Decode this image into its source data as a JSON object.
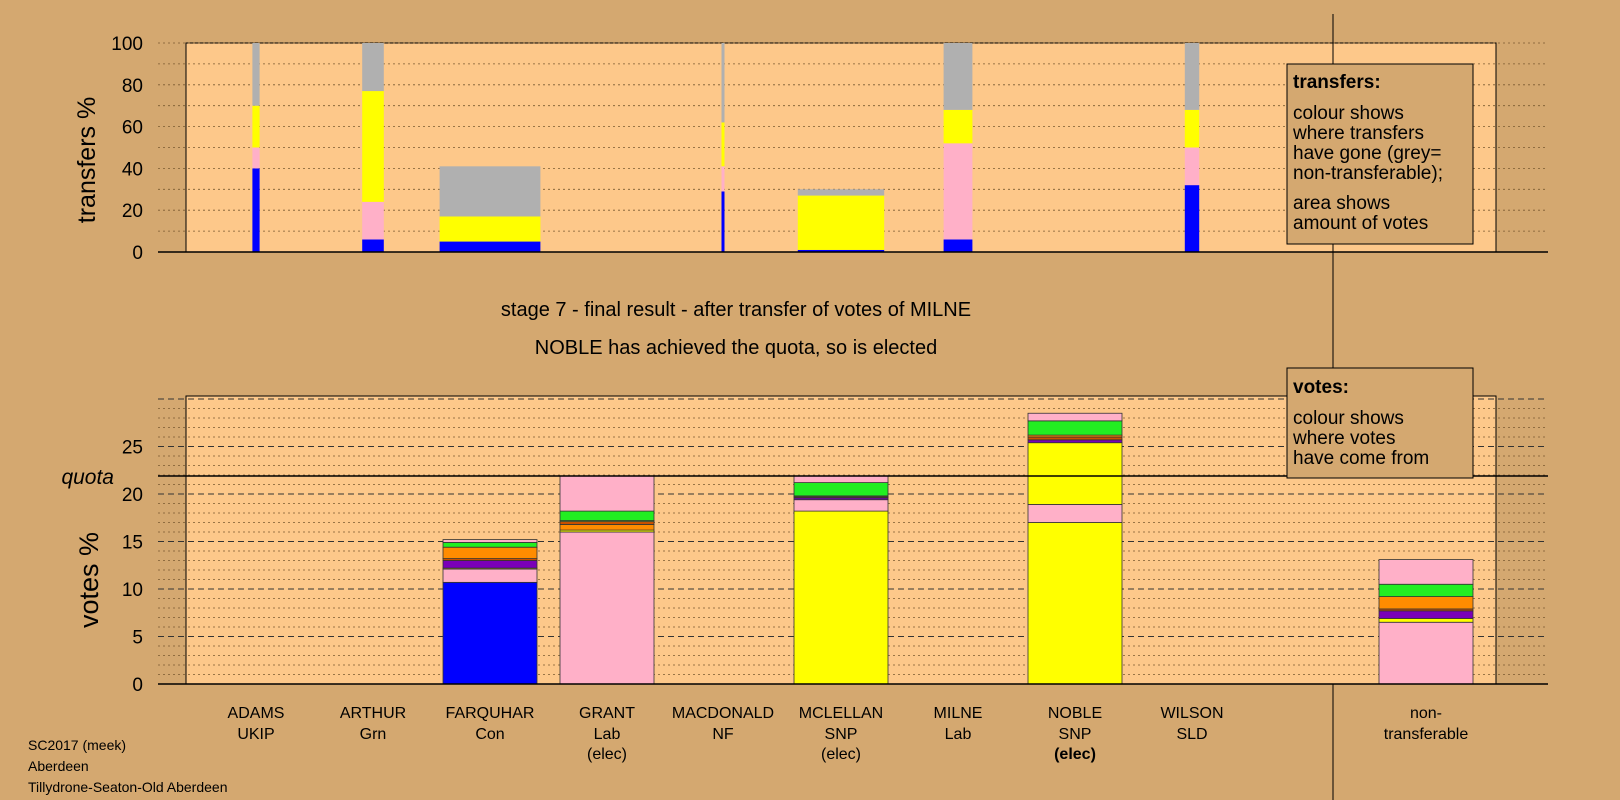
{
  "footer": {
    "line1": "SC2017 (meek)",
    "line2": "Aberdeen",
    "line3": "Tillydrone-Seaton-Old Aberdeen"
  },
  "headings": {
    "stage": "stage 7 - final result - after transfer of votes of MILNE",
    "result": "NOBLE has achieved the quota, so is elected"
  },
  "colors": {
    "background": "#d4a870",
    "plot": "#fdc88a",
    "Con": "#0000ff",
    "Lab": "#ffb0c8",
    "SNP": "#ffff00",
    "Grn": "#22ee22",
    "UKIP": "#7a00b8",
    "NF": "#c85000",
    "SLD": "#ff8c00",
    "nontransferable": "#b0b0b0"
  },
  "chart_data": [
    {
      "type": "bar",
      "stacked": true,
      "ylabel": "transfers %",
      "ylim": [
        0,
        100
      ],
      "yticks": [
        0,
        20,
        40,
        60,
        80,
        100
      ],
      "grid": true,
      "categories": [
        "ADAMS",
        "ARTHUR",
        "FARQUHAR",
        "GRANT",
        "MACDONALD",
        "MCLELLAN",
        "MILNE",
        "NOBLE",
        "WILSON"
      ],
      "bars": [
        {
          "candidate": "ADAMS",
          "width_votes": 0.5,
          "segments": [
            {
              "party": "Con",
              "value": 40
            },
            {
              "party": "Lab",
              "value": 10
            },
            {
              "party": "SNP",
              "value": 20
            },
            {
              "party": "nontransferable",
              "value": 30
            }
          ]
        },
        {
          "candidate": "ARTHUR",
          "width_votes": 1.5,
          "segments": [
            {
              "party": "Con",
              "value": 6
            },
            {
              "party": "Lab",
              "value": 18
            },
            {
              "party": "SNP",
              "value": 53
            },
            {
              "party": "nontransferable",
              "value": 23
            }
          ]
        },
        {
          "candidate": "FARQUHAR",
          "width_votes": 7,
          "segments": [
            {
              "party": "Con",
              "value": 5
            },
            {
              "party": "SNP",
              "value": 12
            },
            {
              "party": "nontransferable",
              "value": 24
            }
          ]
        },
        {
          "candidate": "MACDONALD",
          "width_votes": 0.2,
          "segments": [
            {
              "party": "Con",
              "value": 29
            },
            {
              "party": "Lab",
              "value": 12
            },
            {
              "party": "SNP",
              "value": 21
            },
            {
              "party": "nontransferable",
              "value": 38
            }
          ]
        },
        {
          "candidate": "MCLELLAN",
          "width_votes": 6,
          "segments": [
            {
              "party": "Con",
              "value": 1
            },
            {
              "party": "SNP",
              "value": 26
            },
            {
              "party": "nontransferable",
              "value": 3
            }
          ]
        },
        {
          "candidate": "MILNE",
          "width_votes": 2,
          "segments": [
            {
              "party": "Con",
              "value": 6
            },
            {
              "party": "Lab",
              "value": 46
            },
            {
              "party": "SNP",
              "value": 16
            },
            {
              "party": "nontransferable",
              "value": 32
            }
          ]
        },
        {
          "candidate": "WILSON",
          "width_votes": 1,
          "segments": [
            {
              "party": "Con",
              "value": 32
            },
            {
              "party": "Lab",
              "value": 18
            },
            {
              "party": "SNP",
              "value": 18
            },
            {
              "party": "nontransferable",
              "value": 32
            }
          ]
        }
      ],
      "legend": {
        "title": "transfers:",
        "lines": [
          "colour shows",
          "where transfers",
          "have gone (grey=",
          "non-transferable);"
        ],
        "lines2": [
          "area shows",
          "amount of votes"
        ]
      }
    },
    {
      "type": "bar",
      "stacked": true,
      "ylabel": "votes %",
      "ylim": [
        0,
        30
      ],
      "yticks": [
        0,
        5,
        10,
        15,
        20,
        25
      ],
      "quota": {
        "label": "quota",
        "value": 21.9
      },
      "grid": true,
      "categories": [
        "ADAMS",
        "ARTHUR",
        "FARQUHAR",
        "GRANT",
        "MACDONALD",
        "MCLELLAN",
        "MILNE",
        "NOBLE",
        "WILSON",
        "non-transferable"
      ],
      "candidates": [
        {
          "name": "ADAMS",
          "party": "UKIP",
          "elected": "",
          "segments": []
        },
        {
          "name": "ARTHUR",
          "party": "Grn",
          "elected": "",
          "segments": []
        },
        {
          "name": "FARQUHAR",
          "party": "Con",
          "elected": "",
          "segments": [
            {
              "party": "Con",
              "value": 10.7
            },
            {
              "party": "Lab",
              "value": 1.4
            },
            {
              "party": "SNP",
              "value": 0.1
            },
            {
              "party": "UKIP",
              "value": 0.8
            },
            {
              "party": "NF",
              "value": 0.2
            },
            {
              "party": "SLD",
              "value": 1.2
            },
            {
              "party": "Grn",
              "value": 0.5
            },
            {
              "party": "Lab",
              "value": 0.3
            }
          ]
        },
        {
          "name": "GRANT",
          "party": "Lab",
          "elected": "(elec)",
          "segments": [
            {
              "party": "Lab",
              "value": 16.0
            },
            {
              "party": "SNP",
              "value": 0.2
            },
            {
              "party": "SLD",
              "value": 0.6
            },
            {
              "party": "NF",
              "value": 0.3
            },
            {
              "party": "SNP",
              "value": 0.1
            },
            {
              "party": "Grn",
              "value": 1.0
            },
            {
              "party": "Lab",
              "value": 3.7
            }
          ]
        },
        {
          "name": "MACDONALD",
          "party": "NF",
          "elected": "",
          "segments": []
        },
        {
          "name": "MCLELLAN",
          "party": "SNP",
          "elected": "(elec)",
          "segments": [
            {
              "party": "SNP",
              "value": 18.2
            },
            {
              "party": "Lab",
              "value": 1.2
            },
            {
              "party": "UKIP",
              "value": 0.2
            },
            {
              "party": "NF",
              "value": 0.1
            },
            {
              "party": "SNP",
              "value": 0.1
            },
            {
              "party": "Grn",
              "value": 1.4
            },
            {
              "party": "Lab",
              "value": 0.7
            }
          ]
        },
        {
          "name": "MILNE",
          "party": "Lab",
          "elected": "",
          "segments": []
        },
        {
          "name": "NOBLE",
          "party": "SNP",
          "elected": "(elec)",
          "segments": [
            {
              "party": "SNP",
              "value": 17.0
            },
            {
              "party": "Lab",
              "value": 1.9
            },
            {
              "party": "SNP",
              "value": 6.5
            },
            {
              "party": "UKIP",
              "value": 0.3
            },
            {
              "party": "NF",
              "value": 0.3
            },
            {
              "party": "SLD",
              "value": 0.2
            },
            {
              "party": "Grn",
              "value": 1.5
            },
            {
              "party": "Lab",
              "value": 0.8
            }
          ]
        },
        {
          "name": "WILSON",
          "party": "SLD",
          "elected": "",
          "segments": []
        },
        {
          "name": "non-",
          "party": "transferable",
          "elected": "",
          "segments": [
            {
              "party": "Lab",
              "value": 6.5
            },
            {
              "party": "SNP",
              "value": 0.4
            },
            {
              "party": "UKIP",
              "value": 0.8
            },
            {
              "party": "NF",
              "value": 0.2
            },
            {
              "party": "SLD",
              "value": 1.3
            },
            {
              "party": "Grn",
              "value": 1.3
            },
            {
              "party": "Lab",
              "value": 2.6
            }
          ]
        }
      ],
      "legend": {
        "title": "votes:",
        "lines": [
          "colour shows",
          "where votes",
          "have come from"
        ]
      }
    }
  ]
}
